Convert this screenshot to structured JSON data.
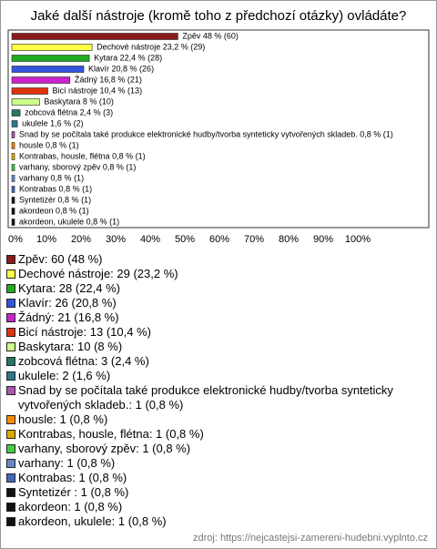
{
  "chart_data": {
    "type": "bar",
    "orientation": "horizontal",
    "title": "Jaké další nástroje (kromě toho z předchozí otázky) ovládáte?",
    "values": [
      48,
      23.2,
      22.4,
      20.8,
      16.8,
      10.4,
      8,
      2.4,
      1.6,
      0.8,
      0.8,
      0.8,
      0.8,
      0.8,
      0.8,
      0.8,
      0.8,
      0.8
    ],
    "value_labels": [
      "Zpěv 48 % (60)",
      "Dechové nástroje 23,2 % (29)",
      "Kytara 22,4 % (28)",
      "Klavír 20,8 % (26)",
      "Žádný 16,8 % (21)",
      "Bicí nástroje 10,4 % (13)",
      "Baskytara 8 % (10)",
      "zobcová flétna 2,4 % (3)",
      "ukulele 1,6 % (2)",
      "Snad by se počítala také produkce elektronické hudby/tvorba synteticky vytvořených skladeb. 0,8 % (1)",
      "housle 0,8 % (1)",
      "Kontrabas, housle, flétna 0,8 % (1)",
      "varhany, sborový zpěv 0,8 % (1)",
      "varhany 0,8 % (1)",
      "Kontrabas 0,8 % (1)",
      "Syntetizér  0,8 % (1)",
      "akordeon 0,8 % (1)",
      "akordeon, ukulele 0,8 % (1)"
    ],
    "legend_labels": [
      "Zpěv: 60 (48 %)",
      "Dechové nástroje: 29 (23,2 %)",
      "Kytara: 28 (22,4 %)",
      "Klavír: 26 (20,8 %)",
      "Žádný: 21 (16,8 %)",
      "Bicí nástroje: 13 (10,4 %)",
      "Baskytara: 10 (8 %)",
      "zobcová flétna: 3 (2,4 %)",
      "ukulele: 2 (1,6 %)",
      "Snad by se počítala také produkce elektronické hudby/tvorba synteticky vytvořených skladeb.: 1 (0,8 %)",
      "housle: 1 (0,8 %)",
      "Kontrabas, housle, flétna: 1 (0,8 %)",
      "varhany, sborový zpěv: 1 (0,8 %)",
      "varhany: 1 (0,8 %)",
      "Kontrabas: 1 (0,8 %)",
      "Syntetizér : 1 (0,8 %)",
      "akordeon: 1 (0,8 %)",
      "akordeon, ukulele: 1 (0,8 %)"
    ],
    "colors": [
      "#8b1a1a",
      "#ffff44",
      "#22aa22",
      "#3355dd",
      "#cc22cc",
      "#dd3311",
      "#ccff88",
      "#227766",
      "#2a7a8a",
      "#aa55aa",
      "#ff8800",
      "#ddaa00",
      "#44cc44",
      "#6688cc",
      "#4466bb",
      "#111111",
      "#111111",
      "#111111"
    ],
    "xlim": [
      0,
      100
    ],
    "xticks": [
      {
        "value": 0,
        "label": "0%"
      },
      {
        "value": 10,
        "label": "10%"
      },
      {
        "value": 20,
        "label": "20%"
      },
      {
        "value": 30,
        "label": "30%"
      },
      {
        "value": 40,
        "label": "40%"
      },
      {
        "value": 50,
        "label": "50%"
      },
      {
        "value": 60,
        "label": "60%"
      },
      {
        "value": 70,
        "label": "70%"
      },
      {
        "value": 80,
        "label": "80%"
      },
      {
        "value": 90,
        "label": "90%"
      },
      {
        "value": 100,
        "label": "100%"
      }
    ],
    "source": "zdroj: https://nejcastejsi-zamereni-hudebni.vyplnto.cz"
  }
}
